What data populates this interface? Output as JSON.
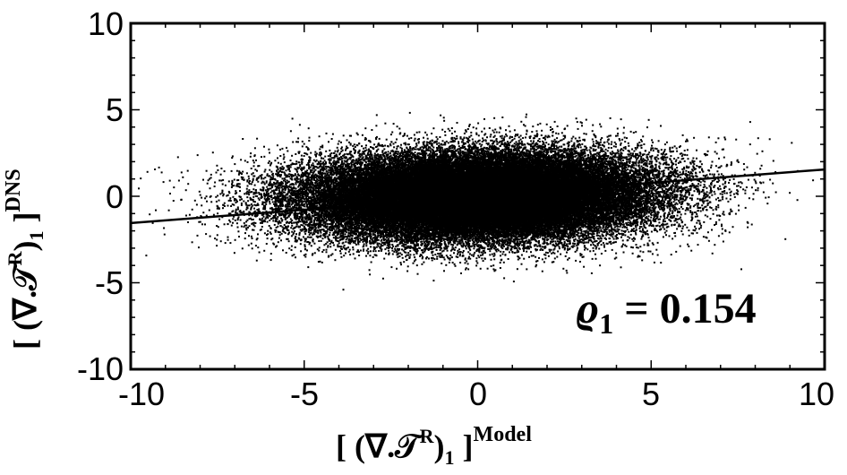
{
  "chart_data": {
    "type": "scatter",
    "xlim": [
      -10,
      10
    ],
    "ylim": [
      -10,
      10
    ],
    "x_ticks": [
      "-10",
      "-5",
      "0",
      "5",
      "10"
    ],
    "y_ticks": [
      "-10",
      "-5",
      "0",
      "5",
      "10"
    ],
    "grid": false,
    "xlabel": {
      "open": "[ (",
      "core": "∇.𝒯",
      "sup1": "R",
      "close": ")",
      "sub": "1",
      "end": " ]",
      "sup2": "Model"
    },
    "ylabel": {
      "open": "[ (",
      "core": "∇.𝒯",
      "sup1": "R",
      "close": ")",
      "sub": "1",
      "end": " ]",
      "sup2": "DNS"
    },
    "annotation": {
      "symbol": "ϱ",
      "sub": "1",
      "text": " = 0.154"
    },
    "series": [
      {
        "kind": "points",
        "color": "#000000",
        "x_mean": 0,
        "x_std": 2.5,
        "y_mean": 0,
        "y_std": 1.25,
        "approx_count": 60000
      },
      {
        "kind": "fit_line",
        "color": "#000000",
        "x": [
          -10,
          10
        ],
        "y": [
          -1.55,
          1.55
        ]
      }
    ]
  }
}
